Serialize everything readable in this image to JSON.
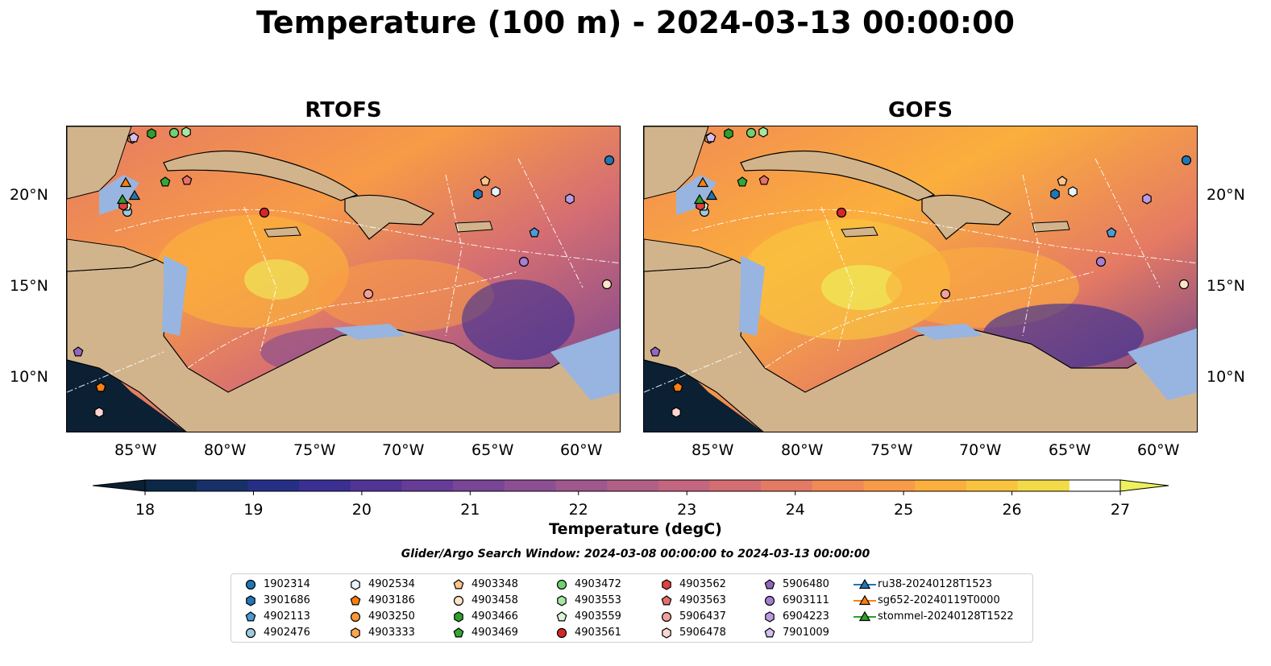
{
  "title": "Temperature (100 m) - 2024-03-13 00:00:00",
  "panels": [
    {
      "title": "RTOFS"
    },
    {
      "title": "GOFS"
    }
  ],
  "axes": {
    "x_ticks": [
      "85°W",
      "80°W",
      "75°W",
      "70°W",
      "65°W",
      "60°W"
    ],
    "y_ticks": [
      "20°N",
      "15°N",
      "10°N"
    ]
  },
  "colorbar": {
    "label": "Temperature (degC)",
    "min": 18,
    "max": 27,
    "step": 0.5,
    "ticks": [
      "18",
      "19",
      "20",
      "21",
      "22",
      "23",
      "24",
      "25",
      "26",
      "27"
    ],
    "extend": "both",
    "colors": [
      "#0b2033",
      "#0c2848",
      "#16306a",
      "#262f86",
      "#3b2f93",
      "#523497",
      "#663c98",
      "#794596",
      "#8c4f93",
      "#9f578e",
      "#b15f87",
      "#c4667f",
      "#d56e73",
      "#e57a64",
      "#f18a54",
      "#f89b46",
      "#fbaf3c",
      "#f9c33e",
      "#f3da48",
      "#eef05c"
    ]
  },
  "search_window": "Glider/Argo Search Window: 2024-03-08 00:00:00 to 2024-03-13 00:00:00",
  "colors": {
    "land": "#d2b48c",
    "shallow": "#98b4e0"
  },
  "legend": [
    {
      "label": "1902314",
      "marker": "circle",
      "color": "#1f77b4"
    },
    {
      "label": "3901686",
      "marker": "hexagon",
      "color": "#1f77b4"
    },
    {
      "label": "4902113",
      "marker": "pentagon",
      "color": "#4a9bd6"
    },
    {
      "label": "4902476",
      "marker": "circle",
      "color": "#9ecae1"
    },
    {
      "label": "4902534",
      "marker": "hexagon",
      "color": "#e6f3fb"
    },
    {
      "label": "4903186",
      "marker": "pentagon",
      "color": "#ff7f0e"
    },
    {
      "label": "4903250",
      "marker": "circle",
      "color": "#ff9633"
    },
    {
      "label": "4903333",
      "marker": "hexagon",
      "color": "#ffa54f"
    },
    {
      "label": "4903348",
      "marker": "pentagon",
      "color": "#ffc48a"
    },
    {
      "label": "4903458",
      "marker": "circle",
      "color": "#ffe5c8"
    },
    {
      "label": "4903466",
      "marker": "hexagon",
      "color": "#2ca02c"
    },
    {
      "label": "4903469",
      "marker": "pentagon",
      "color": "#33a833"
    },
    {
      "label": "4903472",
      "marker": "circle",
      "color": "#6fd16f"
    },
    {
      "label": "4903553",
      "marker": "hexagon",
      "color": "#a6e6a0"
    },
    {
      "label": "4903559",
      "marker": "pentagon",
      "color": "#dcf5d6"
    },
    {
      "label": "4903561",
      "marker": "circle",
      "color": "#d62728"
    },
    {
      "label": "4903562",
      "marker": "hexagon",
      "color": "#e0403f"
    },
    {
      "label": "4903563",
      "marker": "pentagon",
      "color": "#e8706a"
    },
    {
      "label": "5906437",
      "marker": "circle",
      "color": "#f2a09b"
    },
    {
      "label": "5906478",
      "marker": "hexagon",
      "color": "#fcd6d2"
    },
    {
      "label": "5906480",
      "marker": "pentagon",
      "color": "#9467bd"
    },
    {
      "label": "6903111",
      "marker": "circle",
      "color": "#a77fd0"
    },
    {
      "label": "6904223",
      "marker": "hexagon",
      "color": "#bb9be0"
    },
    {
      "label": "7901009",
      "marker": "pentagon",
      "color": "#d4bff0"
    },
    {
      "label": "ru38-20240128T1523",
      "marker": "triangle-line",
      "color": "#1f77b4"
    },
    {
      "label": "sg652-20240119T0000",
      "marker": "triangle-line",
      "color": "#ff7f0e"
    },
    {
      "label": "stommel-20240128T1522",
      "marker": "triangle-line",
      "color": "#2ca02c"
    }
  ]
}
